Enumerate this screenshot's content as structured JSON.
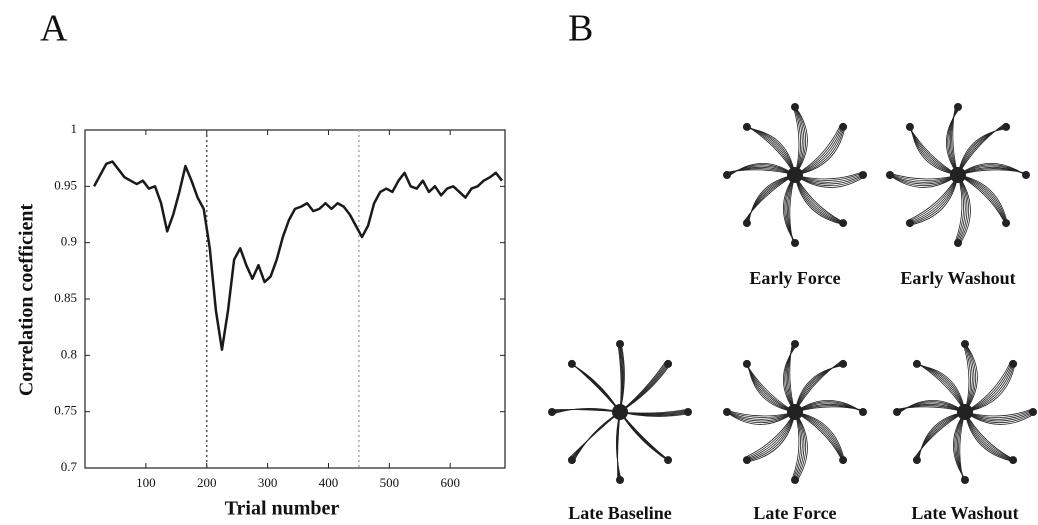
{
  "chart_data": {
    "type": "line",
    "panel_label": "A",
    "xlabel": "Trial number",
    "ylabel": "Correlation  coefficient",
    "x": [
      15,
      25,
      35,
      45,
      55,
      65,
      75,
      85,
      95,
      105,
      115,
      125,
      135,
      145,
      155,
      165,
      175,
      185,
      195,
      205,
      215,
      225,
      235,
      245,
      255,
      265,
      275,
      285,
      295,
      305,
      315,
      325,
      335,
      345,
      355,
      365,
      375,
      385,
      395,
      405,
      415,
      425,
      435,
      445,
      455,
      465,
      475,
      485,
      495,
      505,
      515,
      525,
      535,
      545,
      555,
      565,
      575,
      585,
      595,
      605,
      615,
      625,
      635,
      645,
      655,
      665,
      675,
      685
    ],
    "series": [
      {
        "name": "correlation",
        "color": "#1a1a1a",
        "values": [
          0.95,
          0.96,
          0.97,
          0.972,
          0.965,
          0.958,
          0.955,
          0.952,
          0.955,
          0.948,
          0.95,
          0.935,
          0.91,
          0.925,
          0.945,
          0.968,
          0.955,
          0.94,
          0.93,
          0.895,
          0.84,
          0.805,
          0.84,
          0.885,
          0.895,
          0.88,
          0.868,
          0.88,
          0.865,
          0.87,
          0.885,
          0.905,
          0.92,
          0.93,
          0.932,
          0.935,
          0.928,
          0.93,
          0.935,
          0.93,
          0.935,
          0.932,
          0.925,
          0.915,
          0.905,
          0.915,
          0.935,
          0.945,
          0.948,
          0.945,
          0.955,
          0.962,
          0.95,
          0.948,
          0.955,
          0.945,
          0.95,
          0.942,
          0.948,
          0.95,
          0.945,
          0.94,
          0.948,
          0.95,
          0.955,
          0.958,
          0.962,
          0.955
        ]
      }
    ],
    "xlim": [
      0,
      690
    ],
    "xticks": [
      100,
      200,
      300,
      400,
      500,
      600
    ],
    "ylim": [
      0.7,
      1
    ],
    "yticks": [
      0.7,
      0.75,
      0.8,
      0.85,
      0.9,
      0.95,
      1
    ],
    "vlines": [
      200,
      450
    ]
  },
  "panel_b": {
    "panel_label": "B",
    "plots": [
      "Early Force",
      "Early Washout",
      "Late Baseline",
      "Late Force",
      "Late Washout"
    ]
  }
}
